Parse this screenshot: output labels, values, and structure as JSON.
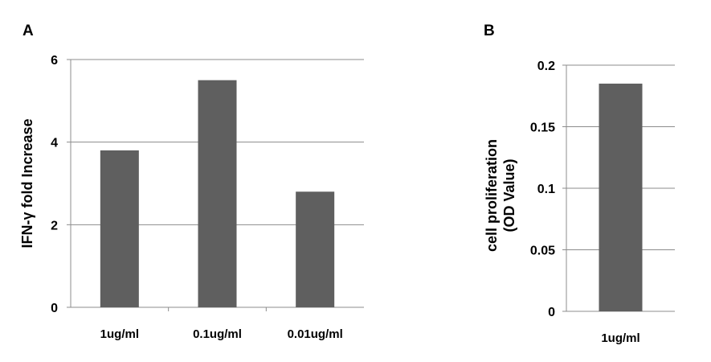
{
  "colors": {
    "bar": "#5f5f5f",
    "grid": "#8c8c8c"
  },
  "chart_data": [
    {
      "type": "bar",
      "panel": "A",
      "categories": [
        "1ug/ml",
        "0.1ug/ml",
        "0.01ug/ml"
      ],
      "values": [
        3.8,
        5.5,
        2.8
      ],
      "ylabel": "IFN-γ fold Increase",
      "xlabel": "",
      "ylim": [
        0,
        6
      ],
      "yticks": [
        0,
        2,
        4,
        6
      ],
      "ytick_labels": [
        "0",
        "2",
        "4",
        "6"
      ],
      "grid": true,
      "legend": "none"
    },
    {
      "type": "bar",
      "panel": "B",
      "categories": [
        "1ug/ml"
      ],
      "values": [
        0.185
      ],
      "ylabel_lines": [
        "cell proliferation",
        "(OD Value)"
      ],
      "xlabel": "",
      "ylim": [
        0,
        0.2
      ],
      "yticks": [
        0,
        0.05,
        0.1,
        0.15,
        0.2
      ],
      "ytick_labels": [
        "0",
        "0.05",
        "0.1",
        "0.15",
        "0.2"
      ],
      "grid": true,
      "legend": "none"
    }
  ]
}
